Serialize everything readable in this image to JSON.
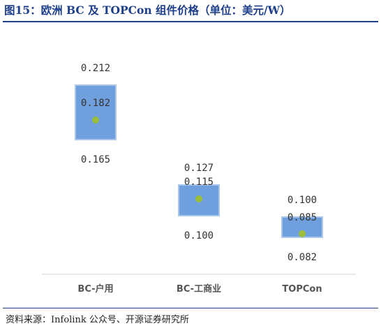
{
  "title": "图15：欧洲 BC 及 TOPCon 组件价格（单位：美元/W）",
  "source": "资料来源：Infolink 公众号、开源证券研究所",
  "colors": {
    "box": "#6f9fdc",
    "box_border": "#a9c6ec",
    "dot": "#9bbe3a",
    "accent": "#1e3f8a",
    "axis": "#d0d0d0"
  },
  "chart_data": {
    "type": "box",
    "categories": [
      "BC-户用",
      "BC-工商业",
      "TOPCon"
    ],
    "high": [
      0.212,
      0.127,
      0.1
    ],
    "average": [
      0.182,
      0.115,
      0.085
    ],
    "low": [
      0.165,
      0.1,
      0.082
    ],
    "high_labels": [
      "0.212",
      "0.127",
      "0.100"
    ],
    "average_labels": [
      "0.182",
      "0.115",
      "0.085"
    ],
    "low_labels": [
      "0.165",
      "0.100",
      "0.082"
    ],
    "grid": false,
    "legend": "none"
  }
}
